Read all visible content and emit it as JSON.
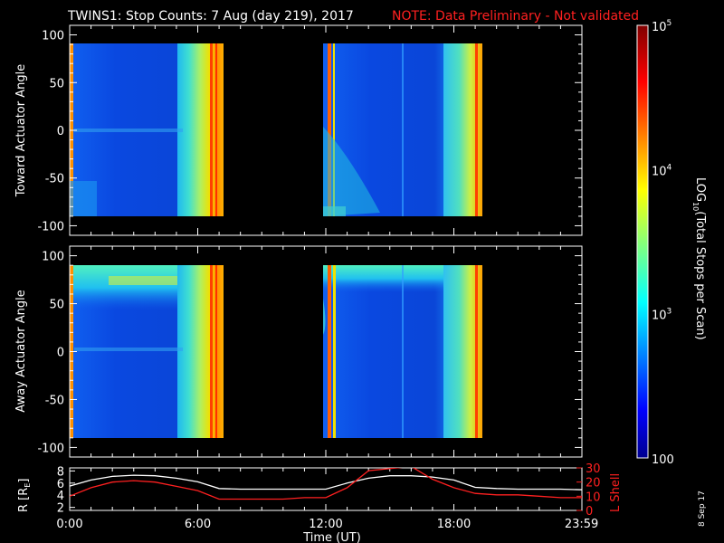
{
  "header": {
    "title": "TWINS1: Stop Counts:  7 Aug (day 219), 2017",
    "note": "NOTE: Data Preliminary - Not validated"
  },
  "colors": {
    "background": "#000000",
    "axes": "#ffffff",
    "note": "#ff2020",
    "r_line": "#ffffff",
    "lshell_line": "#ff2020"
  },
  "chart_data": [
    {
      "type": "heatmap",
      "panel": "toward",
      "ylabel": "Toward Actuator Angle",
      "ylim": [
        -110,
        110
      ],
      "yticks": [
        100,
        50,
        0,
        -50,
        -100
      ],
      "xlim_hours": [
        0,
        24
      ],
      "data_segments_hours": [
        [
          0,
          7.2
        ],
        [
          12.0,
          19.0
        ]
      ],
      "angle_range": [
        -90,
        90
      ],
      "colorscale": "log"
    },
    {
      "type": "heatmap",
      "panel": "away",
      "ylabel": "Away Actuator Angle",
      "ylim": [
        -110,
        110
      ],
      "yticks": [
        100,
        50,
        0,
        -50,
        -100
      ],
      "xlim_hours": [
        0,
        24
      ],
      "data_segments_hours": [
        [
          0,
          7.2
        ],
        [
          12.0,
          19.0
        ]
      ],
      "angle_range": [
        -90,
        90
      ],
      "colorscale": "log"
    },
    {
      "type": "line",
      "panel": "orbit",
      "xlabel": "Time (UT)",
      "xticks": [
        "0:00",
        "6:00",
        "12:00",
        "18:00",
        "23:59"
      ],
      "xtick_hours": [
        0,
        6,
        12,
        18,
        23.983
      ],
      "ylabel_left": "R [R",
      "ylabel_left_sub": "E",
      "ylabel_left_end": "]",
      "yticks_left": [
        "8",
        "6",
        "4",
        "2"
      ],
      "ylim_left": [
        1.5,
        8.5
      ],
      "ylabel_right": "L Shell",
      "yticks_right": [
        "30",
        "20",
        "10",
        "0"
      ],
      "ylim_right": [
        0,
        30
      ],
      "series": [
        {
          "axis": "left",
          "x": [
            0,
            1,
            2,
            3,
            4,
            5,
            6,
            7,
            8,
            9,
            10,
            11,
            12,
            13,
            14,
            15,
            16,
            17,
            18,
            19,
            20,
            21,
            22,
            23,
            24
          ],
          "values": [
            5.5,
            6.5,
            7.1,
            7.3,
            7.2,
            6.8,
            6.2,
            5.1,
            5.0,
            5.0,
            5.0,
            5.0,
            5.0,
            6.0,
            6.8,
            7.2,
            7.2,
            7.0,
            6.5,
            5.3,
            5.1,
            5.0,
            5.0,
            5.0,
            4.9
          ]
        },
        {
          "axis": "right",
          "x": [
            0,
            1,
            2,
            3,
            4,
            5,
            6,
            7,
            8,
            9,
            10,
            11,
            12,
            13,
            14,
            16,
            17,
            18,
            19,
            20,
            21,
            22,
            23,
            24
          ],
          "values": [
            10,
            16,
            20,
            21,
            20,
            17,
            14,
            8,
            8,
            8,
            8,
            9,
            9,
            16,
            28,
            31,
            22,
            16,
            12,
            11,
            11,
            10,
            9,
            9
          ]
        }
      ]
    },
    {
      "type": "colorbar",
      "label": "LOG",
      "label_sub": "10",
      "label_end": "(Total Stops per Scan)",
      "ticks": [
        {
          "base": "10",
          "exp": "5",
          "value": 100000
        },
        {
          "base": "10",
          "exp": "4",
          "value": 10000
        },
        {
          "base": "10",
          "exp": "3",
          "value": 1000
        },
        {
          "base": "100",
          "exp": "",
          "value": 100
        }
      ],
      "range": [
        100,
        100000
      ],
      "scale": "log"
    }
  ],
  "footer": {
    "date_stamp": "8 Sep 17"
  }
}
